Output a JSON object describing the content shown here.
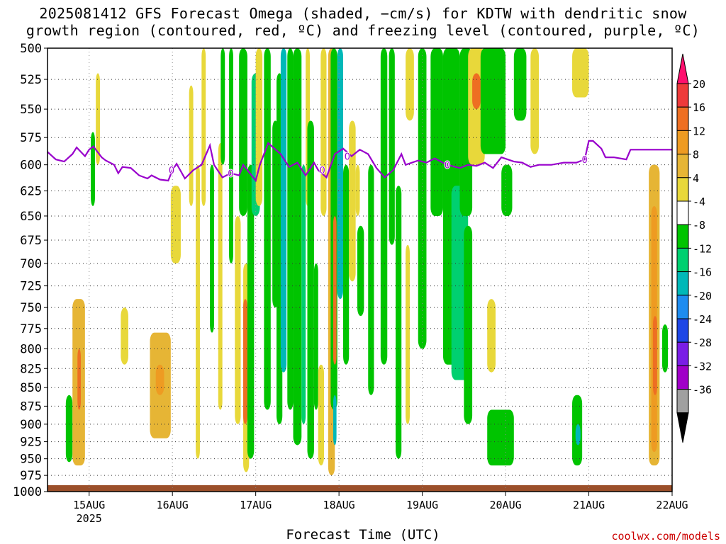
{
  "chart_data": {
    "type": "heatmap",
    "title_line1": "2025081412 GFS Forecast Omega (shaded, −cm/s) for KDTW with dendritic snow",
    "title_line2": "growth region (contoured, red, ºC) and freezing level (contoured, purple, ºC)",
    "xlabel": "Forecast Time (UTC)",
    "x_ticks": [
      "15AUG",
      "16AUG",
      "17AUG",
      "18AUG",
      "19AUG",
      "20AUG",
      "21AUG",
      "22AUG"
    ],
    "x_subtick": "2025",
    "y_ticks": [
      500,
      525,
      550,
      575,
      600,
      625,
      650,
      675,
      700,
      725,
      750,
      775,
      800,
      825,
      850,
      875,
      900,
      925,
      950,
      975,
      1000
    ],
    "y_axis_reversed": true,
    "y_log_scale": true,
    "xlim_days": [
      14.5,
      22.0
    ],
    "grid": true,
    "colorbar": {
      "ticks": [
        20,
        16,
        12,
        8,
        4,
        -4,
        -8,
        -12,
        -16,
        -20,
        -24,
        -28,
        -32,
        -36
      ],
      "colors": [
        "#ff0f6e",
        "#ee3a3a",
        "#ee6f22",
        "#ee9b22",
        "#e6b535",
        "#e8d83a",
        "#ffffff",
        "#00c400",
        "#00d070",
        "#00b8b8",
        "#1e8cf0",
        "#1e46e6",
        "#7a1ee6",
        "#a000c8",
        "#a0a0a0",
        "#000000"
      ]
    },
    "freezing_level": {
      "color": "#9900cc",
      "label": "0",
      "points": [
        [
          14.5,
          588
        ],
        [
          14.6,
          595
        ],
        [
          14.7,
          597
        ],
        [
          14.8,
          590
        ],
        [
          14.85,
          584
        ],
        [
          14.9,
          588
        ],
        [
          14.95,
          592
        ],
        [
          15.0,
          586
        ],
        [
          15.05,
          583
        ],
        [
          15.15,
          593
        ],
        [
          15.2,
          596
        ],
        [
          15.3,
          600
        ],
        [
          15.35,
          608
        ],
        [
          15.4,
          602
        ],
        [
          15.5,
          603
        ],
        [
          15.6,
          610
        ],
        [
          15.7,
          613
        ],
        [
          15.75,
          610
        ],
        [
          15.85,
          614
        ],
        [
          15.95,
          615
        ],
        [
          16.0,
          605
        ],
        [
          16.05,
          599
        ],
        [
          16.15,
          613
        ],
        [
          16.25,
          605
        ],
        [
          16.35,
          600
        ],
        [
          16.45,
          582
        ],
        [
          16.5,
          600
        ],
        [
          16.6,
          612
        ],
        [
          16.7,
          608
        ],
        [
          16.8,
          610
        ],
        [
          16.85,
          600
        ],
        [
          16.95,
          610
        ],
        [
          17.0,
          615
        ],
        [
          17.05,
          600
        ],
        [
          17.15,
          580
        ],
        [
          17.3,
          590
        ],
        [
          17.4,
          602
        ],
        [
          17.5,
          598
        ],
        [
          17.6,
          610
        ],
        [
          17.7,
          598
        ],
        [
          17.75,
          605
        ],
        [
          17.85,
          612
        ],
        [
          17.95,
          590
        ],
        [
          18.05,
          585
        ],
        [
          18.15,
          592
        ],
        [
          18.25,
          586
        ],
        [
          18.35,
          590
        ],
        [
          18.45,
          603
        ],
        [
          18.55,
          612
        ],
        [
          18.65,
          605
        ],
        [
          18.75,
          590
        ],
        [
          18.8,
          600
        ],
        [
          18.95,
          596
        ],
        [
          19.05,
          598
        ],
        [
          19.15,
          594
        ],
        [
          19.3,
          600
        ],
        [
          19.45,
          603
        ],
        [
          19.55,
          600
        ],
        [
          19.65,
          601
        ],
        [
          19.75,
          598
        ],
        [
          19.85,
          603
        ],
        [
          19.95,
          593
        ],
        [
          20.1,
          597
        ],
        [
          20.2,
          598
        ],
        [
          20.3,
          602
        ],
        [
          20.4,
          600
        ],
        [
          20.55,
          600
        ],
        [
          20.7,
          598
        ],
        [
          20.85,
          598
        ],
        [
          20.95,
          595
        ],
        [
          21.0,
          578
        ],
        [
          21.05,
          578
        ],
        [
          21.15,
          585
        ],
        [
          21.2,
          593
        ],
        [
          21.3,
          593
        ],
        [
          21.45,
          595
        ],
        [
          21.5,
          586
        ],
        [
          22.0,
          586
        ]
      ]
    },
    "omega_regions": [
      {
        "x": [
          14.72,
          14.8
        ],
        "p": [
          860,
          955
        ],
        "v": -6
      },
      {
        "x": [
          14.8,
          14.95
        ],
        "p": [
          740,
          960
        ],
        "v": 6
      },
      {
        "x": [
          14.86,
          14.9
        ],
        "p": [
          800,
          880
        ],
        "v": 12
      },
      {
        "x": [
          15.02,
          15.07
        ],
        "p": [
          570,
          640
        ],
        "v": -6
      },
      {
        "x": [
          15.08,
          15.13
        ],
        "p": [
          520,
          600
        ],
        "v": 5
      },
      {
        "x": [
          15.38,
          15.47
        ],
        "p": [
          750,
          820
        ],
        "v": 5
      },
      {
        "x": [
          15.73,
          15.98
        ],
        "p": [
          780,
          920
        ],
        "v": 6
      },
      {
        "x": [
          15.8,
          15.9
        ],
        "p": [
          820,
          860
        ],
        "v": 10
      },
      {
        "x": [
          15.98,
          16.1
        ],
        "p": [
          620,
          700
        ],
        "v": 5
      },
      {
        "x": [
          16.2,
          16.25
        ],
        "p": [
          530,
          640
        ],
        "v": 5
      },
      {
        "x": [
          16.28,
          16.33
        ],
        "p": [
          600,
          950
        ],
        "v": 5
      },
      {
        "x": [
          16.35,
          16.4
        ],
        "p": [
          500,
          640
        ],
        "v": 5
      },
      {
        "x": [
          16.45,
          16.5
        ],
        "p": [
          600,
          780
        ],
        "v": -6
      },
      {
        "x": [
          16.55,
          16.6
        ],
        "p": [
          580,
          880
        ],
        "v": 5
      },
      {
        "x": [
          16.58,
          16.63
        ],
        "p": [
          500,
          600
        ],
        "v": -6
      },
      {
        "x": [
          16.68,
          16.73
        ],
        "p": [
          500,
          700
        ],
        "v": -6
      },
      {
        "x": [
          16.75,
          16.82
        ],
        "p": [
          650,
          900
        ],
        "v": 5
      },
      {
        "x": [
          16.8,
          16.9
        ],
        "p": [
          500,
          650
        ],
        "v": -6
      },
      {
        "x": [
          16.85,
          16.92
        ],
        "p": [
          700,
          970
        ],
        "v": 5
      },
      {
        "x": [
          16.85,
          16.9
        ],
        "p": [
          740,
          900
        ],
        "v": 12
      },
      {
        "x": [
          16.9,
          16.98
        ],
        "p": [
          600,
          950
        ],
        "v": -6
      },
      {
        "x": [
          16.95,
          17.05
        ],
        "p": [
          520,
          650
        ],
        "v": -10
      },
      {
        "x": [
          17.0,
          17.08
        ],
        "p": [
          500,
          640
        ],
        "v": 5
      },
      {
        "x": [
          17.1,
          17.18
        ],
        "p": [
          500,
          880
        ],
        "v": -6
      },
      {
        "x": [
          17.2,
          17.27
        ],
        "p": [
          560,
          750
        ],
        "v": -6
      },
      {
        "x": [
          17.25,
          17.32
        ],
        "p": [
          520,
          900
        ],
        "v": -6
      },
      {
        "x": [
          17.3,
          17.37
        ],
        "p": [
          500,
          830
        ],
        "v": -14
      },
      {
        "x": [
          17.38,
          17.45
        ],
        "p": [
          500,
          880
        ],
        "v": -6
      },
      {
        "x": [
          17.45,
          17.55
        ],
        "p": [
          500,
          930
        ],
        "v": -6
      },
      {
        "x": [
          17.55,
          17.6
        ],
        "p": [
          600,
          900
        ],
        "v": -8
      },
      {
        "x": [
          17.6,
          17.65
        ],
        "p": [
          500,
          640
        ],
        "v": 5
      },
      {
        "x": [
          17.62,
          17.7
        ],
        "p": [
          560,
          950
        ],
        "v": -6
      },
      {
        "x": [
          17.7,
          17.75
        ],
        "p": [
          700,
          880
        ],
        "v": -6
      },
      {
        "x": [
          17.75,
          17.82
        ],
        "p": [
          820,
          960
        ],
        "v": 5
      },
      {
        "x": [
          17.78,
          17.85
        ],
        "p": [
          500,
          650
        ],
        "v": 5
      },
      {
        "x": [
          17.87,
          17.95
        ],
        "p": [
          500,
          975
        ],
        "v": 6
      },
      {
        "x": [
          17.9,
          17.98
        ],
        "p": [
          500,
          880
        ],
        "v": -6
      },
      {
        "x": [
          17.93,
          17.97
        ],
        "p": [
          650,
          820
        ],
        "v": 14
      },
      {
        "x": [
          17.93,
          17.97
        ],
        "p": [
          860,
          930
        ],
        "v": -14
      },
      {
        "x": [
          17.98,
          18.05
        ],
        "p": [
          500,
          740
        ],
        "v": -12
      },
      {
        "x": [
          18.05,
          18.12
        ],
        "p": [
          600,
          820
        ],
        "v": -6
      },
      {
        "x": [
          18.12,
          18.2
        ],
        "p": [
          560,
          720
        ],
        "v": 5
      },
      {
        "x": [
          18.2,
          18.25
        ],
        "p": [
          600,
          650
        ],
        "v": 5
      },
      {
        "x": [
          18.22,
          18.3
        ],
        "p": [
          660,
          760
        ],
        "v": -6
      },
      {
        "x": [
          18.35,
          18.42
        ],
        "p": [
          600,
          860
        ],
        "v": -6
      },
      {
        "x": [
          18.5,
          18.58
        ],
        "p": [
          500,
          820
        ],
        "v": -6
      },
      {
        "x": [
          18.6,
          18.67
        ],
        "p": [
          500,
          680
        ],
        "v": -6
      },
      {
        "x": [
          18.68,
          18.75
        ],
        "p": [
          620,
          950
        ],
        "v": -6
      },
      {
        "x": [
          18.8,
          18.85
        ],
        "p": [
          680,
          900
        ],
        "v": 5
      },
      {
        "x": [
          18.82,
          18.85
        ],
        "p": [
          500,
          520
        ],
        "v": 12
      },
      {
        "x": [
          18.8,
          18.9
        ],
        "p": [
          500,
          560
        ],
        "v": 5
      },
      {
        "x": [
          18.95,
          19.05
        ],
        "p": [
          500,
          800
        ],
        "v": -6
      },
      {
        "x": [
          19.1,
          19.25
        ],
        "p": [
          500,
          650
        ],
        "v": -6
      },
      {
        "x": [
          19.25,
          19.45
        ],
        "p": [
          500,
          820
        ],
        "v": -6
      },
      {
        "x": [
          19.35,
          19.55
        ],
        "p": [
          620,
          840
        ],
        "v": -10
      },
      {
        "x": [
          19.45,
          19.6
        ],
        "p": [
          500,
          650
        ],
        "v": -6
      },
      {
        "x": [
          19.5,
          19.6
        ],
        "p": [
          660,
          900
        ],
        "v": -6
      },
      {
        "x": [
          19.55,
          19.75
        ],
        "p": [
          500,
          600
        ],
        "v": 5
      },
      {
        "x": [
          19.6,
          19.7
        ],
        "p": [
          520,
          550
        ],
        "v": 12
      },
      {
        "x": [
          19.7,
          20.0
        ],
        "p": [
          500,
          590
        ],
        "v": -6
      },
      {
        "x": [
          19.95,
          20.08
        ],
        "p": [
          600,
          650
        ],
        "v": -6
      },
      {
        "x": [
          19.78,
          19.88
        ],
        "p": [
          740,
          830
        ],
        "v": 5
      },
      {
        "x": [
          19.78,
          20.1
        ],
        "p": [
          880,
          960
        ],
        "v": -6
      },
      {
        "x": [
          20.1,
          20.25
        ],
        "p": [
          500,
          560
        ],
        "v": -6
      },
      {
        "x": [
          20.3,
          20.4
        ],
        "p": [
          500,
          590
        ],
        "v": 5
      },
      {
        "x": [
          20.8,
          21.0
        ],
        "p": [
          500,
          540
        ],
        "v": 5
      },
      {
        "x": [
          20.8,
          20.92
        ],
        "p": [
          860,
          960
        ],
        "v": -6
      },
      {
        "x": [
          20.84,
          20.9
        ],
        "p": [
          900,
          930
        ],
        "v": -12
      },
      {
        "x": [
          21.72,
          21.85
        ],
        "p": [
          600,
          960
        ],
        "v": 6
      },
      {
        "x": [
          21.75,
          21.82
        ],
        "p": [
          640,
          940
        ],
        "v": 9
      },
      {
        "x": [
          21.77,
          21.82
        ],
        "p": [
          760,
          860
        ],
        "v": 12
      },
      {
        "x": [
          21.88,
          21.95
        ],
        "p": [
          770,
          830
        ],
        "v": -6
      }
    ]
  },
  "credit": "coolwx.com/models"
}
